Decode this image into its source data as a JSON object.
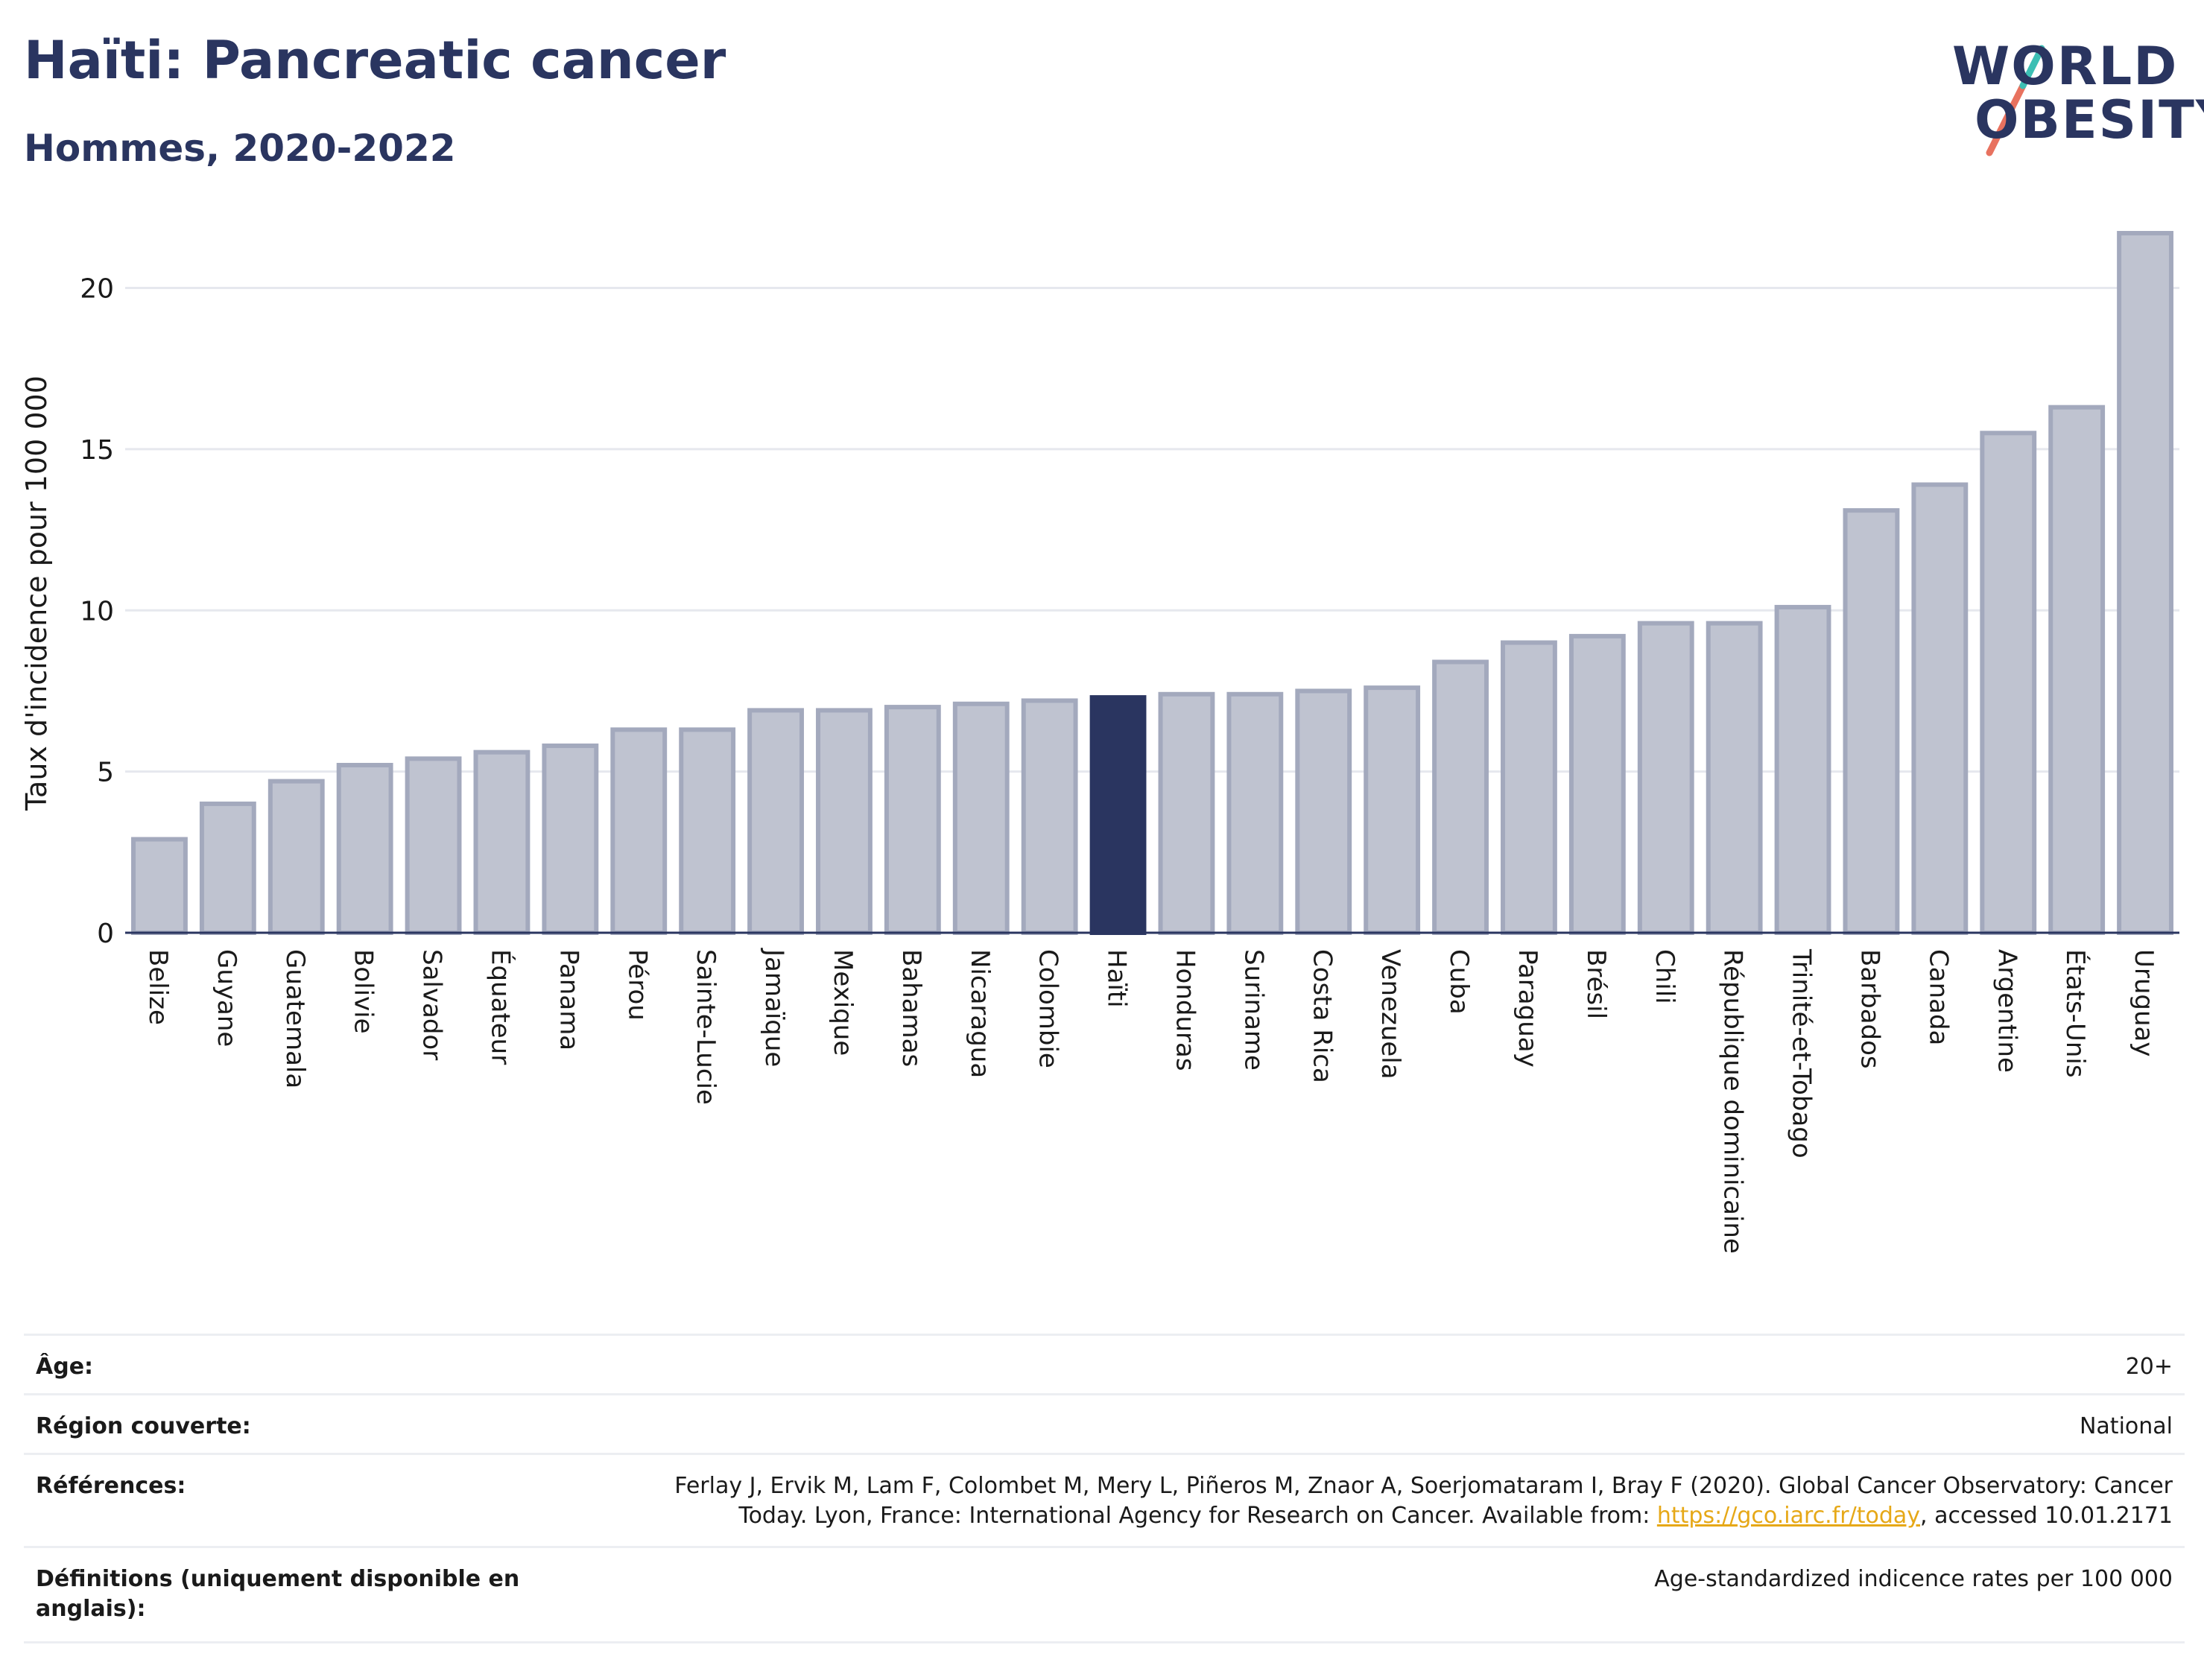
{
  "header": {
    "title": "Haïti: Pancreatic cancer",
    "subtitle": "Hommes, 2020-2022"
  },
  "logo": {
    "line1": "WORLD",
    "line2": "OBESITY"
  },
  "colors": {
    "bar": "#bfc3d0",
    "bar_border": "#a3a9bd",
    "highlight": "#2a3560",
    "grid": "#e6e8ee"
  },
  "chart_data": {
    "type": "bar",
    "ylabel": "Taux d'incidence pour 100 000",
    "ylim": [
      0,
      22
    ],
    "yticks": [
      0,
      5,
      10,
      15,
      20
    ],
    "highlight": "Haïti",
    "categories": [
      "Belize",
      "Guyane",
      "Guatemala",
      "Bolivie",
      "Salvador",
      "Équateur",
      "Panama",
      "Pérou",
      "Sainte-Lucie",
      "Jamaïque",
      "Mexique",
      "Bahamas",
      "Nicaragua",
      "Colombie",
      "Haïti",
      "Honduras",
      "Suriname",
      "Costa Rica",
      "Venezuela",
      "Cuba",
      "Paraguay",
      "Brésil",
      "Chili",
      "République dominicaine",
      "Trinité-et-Tobago",
      "Barbados",
      "Canada",
      "Argentine",
      "États-Unis",
      "Uruguay"
    ],
    "values": [
      2.9,
      4.0,
      4.7,
      5.2,
      5.4,
      5.6,
      5.8,
      6.3,
      6.3,
      6.9,
      6.9,
      7.0,
      7.1,
      7.2,
      7.3,
      7.4,
      7.4,
      7.5,
      7.6,
      8.4,
      9.0,
      9.2,
      9.6,
      9.6,
      10.1,
      13.1,
      13.9,
      15.5,
      16.3,
      21.7
    ]
  },
  "meta": {
    "age_label": "Âge:",
    "age_value": "20+",
    "region_label": "Région couverte:",
    "region_value": "National",
    "refs_label": "Références:",
    "refs_text1": "Ferlay J, Ervik M, Lam F, Colombet M, Mery L, Piñeros M, Znaor A, Soerjomataram I, Bray F (2020). Global Cancer Observatory: Cancer",
    "refs_text2": "Today. Lyon, France: International Agency for Research on Cancer. Available from: ",
    "refs_link": "https://gco.iarc.fr/today",
    "refs_text3": ", accessed 10.01.2171",
    "defs_label": "Définitions (uniquement disponible en anglais):",
    "defs_value": "Age-standardized indicence rates per 100 000"
  }
}
